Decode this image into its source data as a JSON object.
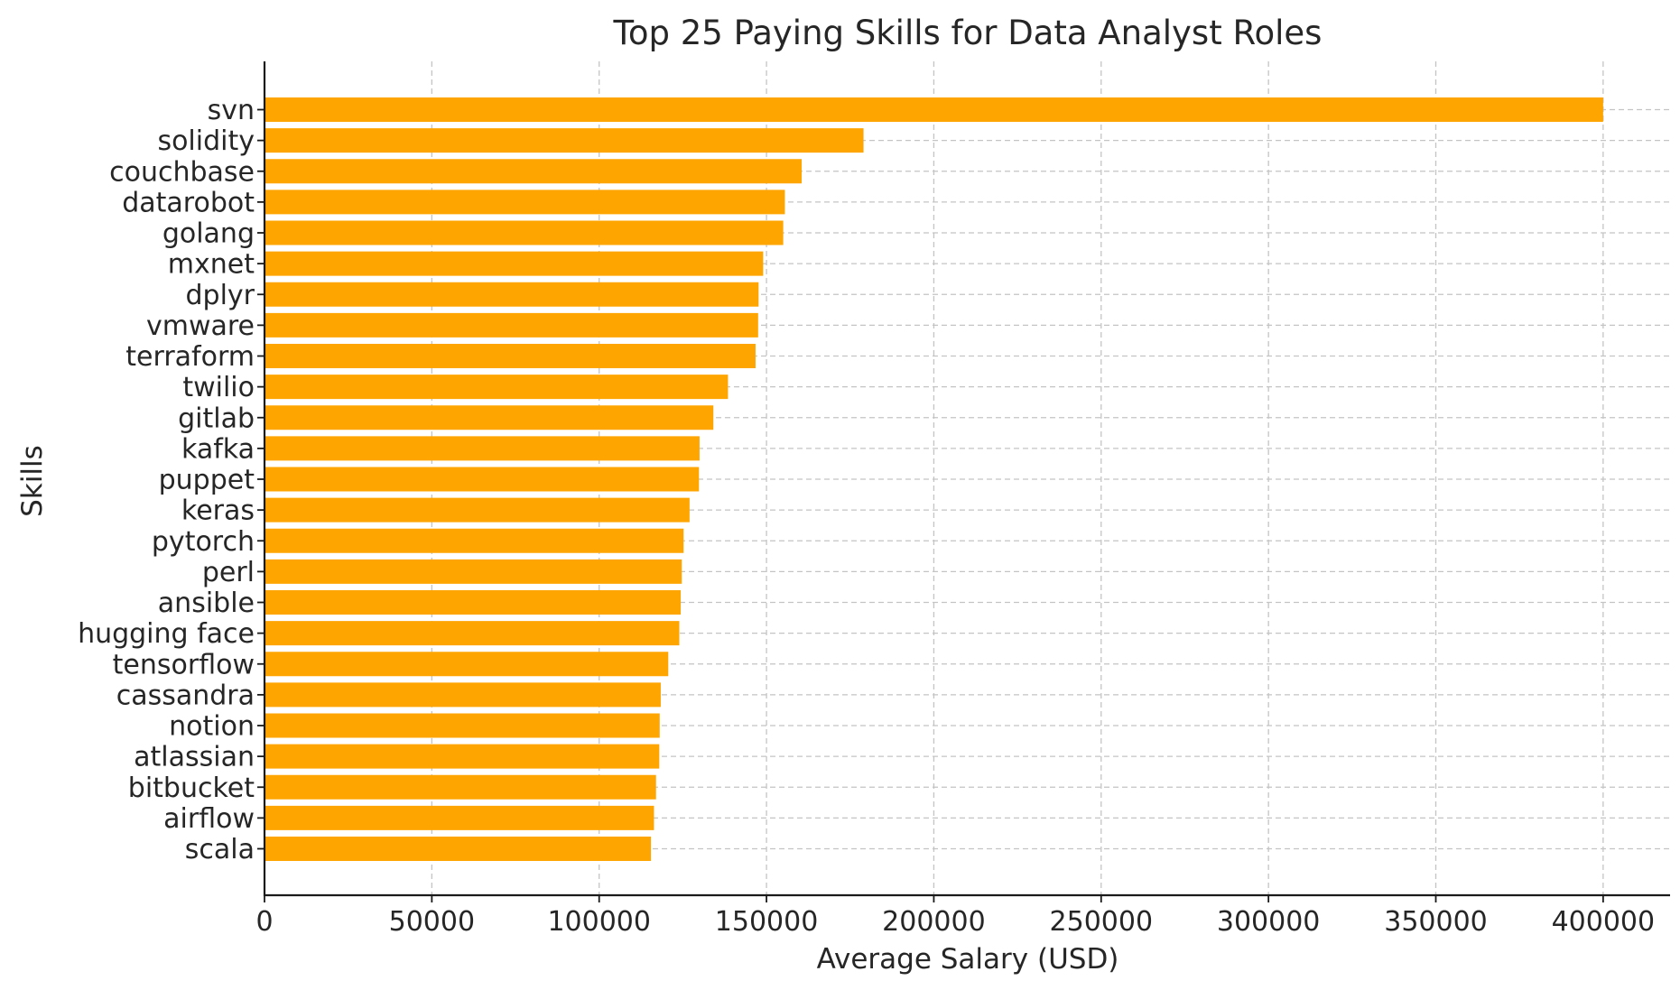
{
  "chart_data": {
    "type": "bar",
    "orientation": "horizontal",
    "title": "Top 25 Paying Skills for Data Analyst Roles",
    "xlabel": "Average Salary (USD)",
    "ylabel": "Skills",
    "categories": [
      "svn",
      "solidity",
      "couchbase",
      "datarobot",
      "golang",
      "mxnet",
      "dplyr",
      "vmware",
      "terraform",
      "twilio",
      "gitlab",
      "kafka",
      "puppet",
      "keras",
      "pytorch",
      "perl",
      "ansible",
      "hugging face",
      "tensorflow",
      "cassandra",
      "notion",
      "atlassian",
      "bitbucket",
      "airflow",
      "scala"
    ],
    "values": [
      400000,
      179000,
      160515,
      155486,
      155000,
      149000,
      147633,
      147500,
      146734,
      138500,
      134126,
      129999,
      129820,
      127013,
      125226,
      124686,
      124370,
      123950,
      120647,
      118407,
      118092,
      117966,
      116992,
      116387,
      115480
    ],
    "xlim": [
      0,
      420000
    ],
    "xticks": [
      0,
      50000,
      100000,
      150000,
      200000,
      250000,
      300000,
      350000,
      400000
    ],
    "grid": true,
    "bar_color": "#FFA500",
    "legend": "none"
  }
}
